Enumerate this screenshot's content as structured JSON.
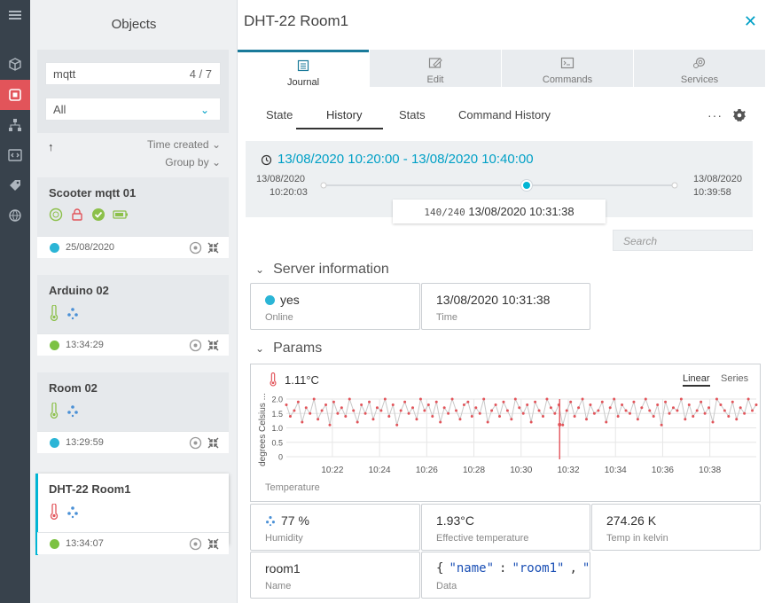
{
  "sidebar": {
    "items": [
      {
        "icon": "menu-icon"
      },
      {
        "icon": "cube-icon"
      },
      {
        "icon": "objects-icon",
        "active": true
      },
      {
        "icon": "hierarchy-icon"
      },
      {
        "icon": "code-icon"
      },
      {
        "icon": "tag-icon"
      },
      {
        "icon": "globe-icon"
      }
    ]
  },
  "objects": {
    "title": "Objects",
    "search_value": "mqtt",
    "search_count": "4 / 7",
    "filter_value": "All",
    "sort_by": "Time created",
    "group_by": "Group by",
    "cards": [
      {
        "name": "Scooter mqtt 01",
        "time": "25/08/2020",
        "status_color": "#2bb5d6"
      },
      {
        "name": "Arduino 02",
        "time": "13:34:29",
        "status_color": "#7cc242"
      },
      {
        "name": "Room 02",
        "time": "13:29:59",
        "status_color": "#2bb5d6"
      },
      {
        "name": "DHT-22 Room1",
        "time": "13:34:07",
        "status_color": "#7cc242"
      }
    ]
  },
  "detail": {
    "title": "DHT-22 Room1",
    "tabs": [
      "Journal",
      "Edit",
      "Commands",
      "Services"
    ],
    "subtabs": [
      "State",
      "History",
      "Stats",
      "Command History"
    ],
    "range_title": "13/08/2020 10:20:00 - 13/08/2020 10:40:00",
    "range_start_date": "13/08/2020",
    "range_start_time": "10:20:03",
    "range_end_date": "13/08/2020",
    "range_end_time": "10:39:58",
    "slider_position": "140/240",
    "slider_time": "13/08/2020 10:31:38",
    "search_placeholder": "Search",
    "server_title": "Server information",
    "online_value": "yes",
    "online_label": "Online",
    "time_value": "13/08/2020 10:31:38",
    "time_label": "Time",
    "params_title": "Params",
    "temperature_value": "1.11°C",
    "temperature_label": "Temperature",
    "chart_mode_linear": "Linear",
    "chart_mode_series": "Series",
    "humidity_value": "77 %",
    "humidity_label": "Humidity",
    "effective_value": "1.93°C",
    "effective_label": "Effective temperature",
    "kelvin_value": "274.26 K",
    "kelvin_label": "Temp in kelvin",
    "name_value": "room1",
    "name_label": "Name",
    "data_label": "Data"
  },
  "chart_data": {
    "type": "line",
    "ylabel": "degrees Celsius ...",
    "xlabel": "Temperature",
    "yticks": [
      "2.0",
      "1.5",
      "1.0",
      "0.5",
      "0"
    ],
    "xticks": [
      "10:22",
      "10:24",
      "10:26",
      "10:28",
      "10:30",
      "10:32",
      "10:34",
      "10:36",
      "10:38"
    ],
    "ylim": [
      0,
      2
    ],
    "xlim": [
      "10:20:03",
      "10:39:58"
    ],
    "marker_time": "10:31:38",
    "marker_value": 1.11,
    "series": [
      {
        "values": [
          1.8,
          1.4,
          1.6,
          1.9,
          1.2,
          1.7,
          1.5,
          2.0,
          1.3,
          1.6,
          1.8,
          1.1,
          1.9,
          1.5,
          1.7,
          1.4,
          2.0,
          1.6,
          1.2,
          1.8,
          1.5,
          1.9,
          1.3,
          1.7,
          1.6,
          2.0,
          1.4,
          1.8,
          1.1,
          1.6,
          1.9,
          1.5,
          1.7,
          1.3,
          2.0,
          1.6,
          1.8,
          1.4,
          1.9,
          1.2,
          1.7,
          1.5,
          2.0,
          1.6,
          1.3,
          1.8,
          1.9,
          1.4,
          1.7,
          1.5,
          2.0,
          1.2,
          1.6,
          1.8,
          1.4,
          1.9,
          1.6,
          1.3,
          2.0,
          1.7,
          1.5,
          1.8,
          1.2,
          1.9,
          1.6,
          1.4,
          2.0,
          1.7,
          1.5,
          1.8,
          1.1,
          1.6,
          1.9,
          1.4,
          1.7,
          2.0,
          1.3,
          1.8,
          1.5,
          1.6,
          1.9,
          1.2,
          1.7,
          2.0,
          1.4,
          1.8,
          1.6,
          1.5,
          1.9,
          1.3,
          1.7,
          2.0,
          1.6,
          1.4,
          1.8,
          1.1,
          1.9,
          1.5,
          1.7,
          1.6,
          2.0,
          1.3,
          1.8,
          1.4,
          1.6,
          1.9,
          1.5,
          1.7,
          1.2,
          2.0,
          1.8,
          1.6,
          1.4,
          1.9,
          1.3,
          1.7,
          1.5,
          2.0,
          1.6,
          1.8
        ]
      }
    ]
  },
  "data_json": {
    "parts": [
      {
        "k": "\"name\"",
        "s": ":",
        "v": "\"room1\"",
        "c": ","
      },
      {
        "k": "\"tempe",
        "s": "",
        "v": "",
        "c": ""
      }
    ]
  }
}
